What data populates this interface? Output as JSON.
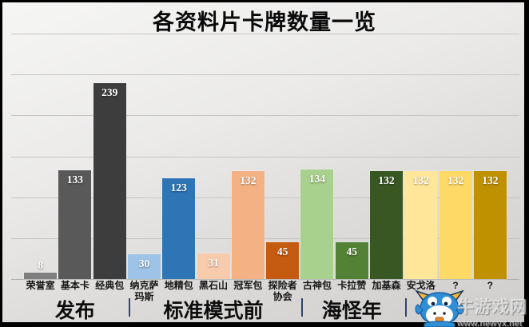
{
  "title": "各资料片卡牌数量一览",
  "chart_data": {
    "type": "bar",
    "title": "各资料片卡牌数量一览",
    "categories": [
      "荣誉室",
      "基本卡",
      "经典包",
      "纳克萨玛斯",
      "地精包",
      "黑石山",
      "冠军包",
      "探险者协会",
      "古神包",
      "卡拉赞",
      "加基森",
      "安戈洛",
      "?",
      "?"
    ],
    "category_display": [
      "荣誉室",
      "基本卡",
      "经典包",
      "纳克萨\n玛斯",
      "地精包",
      "黑石山",
      "冠军包",
      "探险者\n协会",
      "古神包",
      "卡拉赞",
      "加基森",
      "安戈洛",
      "?",
      "?"
    ],
    "values": [
      8,
      133,
      239,
      30,
      123,
      31,
      132,
      45,
      134,
      45,
      132,
      132,
      132,
      132
    ],
    "bar_colors": [
      "#7f7f7f",
      "#595959",
      "#3d3d3d",
      "#9dc3e6",
      "#2e75b6",
      "#f8cbad",
      "#f4b183",
      "#c55a11",
      "#a9d18e",
      "#538135",
      "#385723",
      "#ffe699",
      "#ffd966",
      "#bf9000"
    ],
    "groups": [
      {
        "label": "发布",
        "from": 0,
        "to": 2
      },
      {
        "label": "标准模式前",
        "from": 3,
        "to": 7
      },
      {
        "label": "海怪年",
        "from": 8,
        "to": 10
      },
      {
        "label": "",
        "from": 11,
        "to": 13
      }
    ],
    "xlabel": "",
    "ylabel": "",
    "ylim": [
      0,
      300
    ],
    "gridline_step": 50,
    "grid": true,
    "legend": "none",
    "value_label_position": "inside-end"
  },
  "watermark": {
    "brand": "牛游戏网",
    "url": "www.newyx.net",
    "mascot": "bull-mascot-icon"
  },
  "colors": {
    "grid": "#c6c5c4",
    "axis": "#aeadac",
    "separator": "#2e4470",
    "value_label_text": "#ffffff"
  }
}
